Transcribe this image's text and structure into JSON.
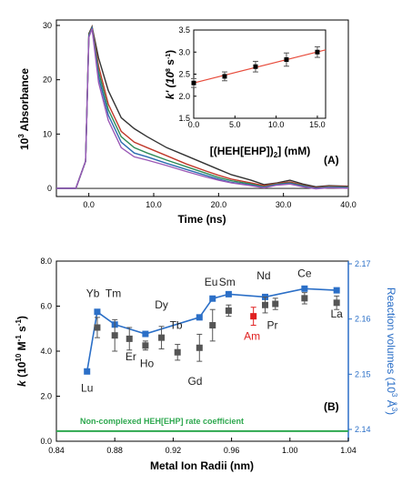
{
  "chart_data": [
    {
      "type": "line",
      "panel_label": "(A)",
      "xlabel": "Time (ns)",
      "ylabel": "10",
      "ylabel_sup": "3",
      "ylabel_rest": " Absorbance",
      "xlim": [
        -5,
        40
      ],
      "ylim": [
        -1.5,
        31
      ],
      "x_ticks": [
        0,
        10,
        20,
        30,
        40
      ],
      "x_tick_labels": [
        "0.0",
        "10.0",
        "20.0",
        "30.0",
        "40.0"
      ],
      "y_ticks": [
        0,
        10,
        20,
        30
      ],
      "y_tick_labels": [
        "0",
        "10",
        "20",
        "30"
      ],
      "series": [
        {
          "color": "#333333",
          "values_x": [
            -5,
            -2,
            -0.5,
            0,
            0.5,
            1.5,
            3,
            5,
            7,
            9,
            12,
            15,
            18,
            20,
            22,
            25,
            27,
            29,
            31,
            33,
            35,
            37,
            40
          ],
          "values_y": [
            0,
            0,
            5,
            28.5,
            29.8,
            24,
            18,
            13,
            11,
            9.5,
            7.5,
            6,
            4.5,
            3.5,
            2.5,
            1.5,
            0.7,
            1,
            1.5,
            0.8,
            0.3,
            0.5,
            0.4
          ]
        },
        {
          "color": "#c0392b",
          "values_x": [
            -5,
            -2,
            -0.5,
            0,
            0.5,
            1.5,
            3,
            5,
            7,
            9,
            12,
            15,
            18,
            20,
            22,
            25,
            27,
            29,
            31,
            33,
            35,
            37,
            40
          ],
          "values_y": [
            0,
            0,
            5,
            28.3,
            29.7,
            22.5,
            15.5,
            10.5,
            8.5,
            7.5,
            6,
            4.5,
            3.2,
            2.4,
            1.7,
            1,
            0.5,
            0.9,
            1.2,
            0.6,
            0.1,
            0.4,
            0.3
          ]
        },
        {
          "color": "#2e8b57",
          "values_x": [
            -5,
            -2,
            -0.5,
            0,
            0.5,
            1.5,
            3,
            5,
            7,
            9,
            12,
            15,
            18,
            20,
            22,
            25,
            27,
            29,
            31,
            33,
            35,
            37,
            40
          ],
          "values_y": [
            0,
            0,
            5,
            28.2,
            29.6,
            21.5,
            14.5,
            9.5,
            7.5,
            6.5,
            5.2,
            4,
            2.8,
            2,
            1.4,
            0.8,
            0.3,
            0.8,
            1,
            0.5,
            0,
            0.3,
            0.2
          ]
        },
        {
          "color": "#2b6cb0",
          "values_x": [
            -5,
            -2,
            -0.5,
            0,
            0.5,
            1.5,
            3,
            5,
            7,
            9,
            12,
            15,
            18,
            20,
            22,
            25,
            27,
            29,
            31,
            33,
            35,
            37,
            40
          ],
          "values_y": [
            0,
            0,
            5,
            28,
            29.5,
            20.5,
            13.5,
            8.5,
            6.5,
            5.8,
            4.6,
            3.5,
            2.4,
            1.7,
            1.1,
            0.6,
            0.2,
            0.7,
            0.9,
            0.4,
            0,
            0.2,
            0.1
          ]
        },
        {
          "color": "#9b59b6",
          "values_x": [
            -5,
            -2,
            -0.5,
            0,
            0.5,
            1.5,
            3,
            5,
            7,
            9,
            12,
            15,
            18,
            20,
            22,
            25,
            27,
            29,
            31,
            33,
            35,
            37,
            40
          ],
          "values_y": [
            0,
            0,
            5,
            27.8,
            29.4,
            19.5,
            12.5,
            7.5,
            5.8,
            5.2,
            4.2,
            3.1,
            2.1,
            1.5,
            1,
            0.5,
            0.1,
            0.6,
            0.8,
            0.3,
            -0.1,
            0.1,
            0
          ]
        }
      ]
    },
    {
      "type": "scatter",
      "xlabel": "[(HEH[EHP])",
      "xlabel_sub": "2",
      "xlabel_rest": "] (mM)",
      "ylabel": "k' (10",
      "ylabel_sup1": "8",
      "ylabel_rest": " s",
      "ylabel_sup2": "-1",
      "ylabel_end": ")",
      "xlim": [
        0,
        16
      ],
      "ylim": [
        1.5,
        3.5
      ],
      "x_ticks": [
        0,
        5,
        10,
        15
      ],
      "x_tick_labels": [
        "0.0",
        "5.0",
        "10.0",
        "15.0"
      ],
      "y_ticks": [
        1.5,
        2.0,
        2.5,
        3.0,
        3.5
      ],
      "y_tick_labels": [
        "1.5",
        "2.0",
        "2.5",
        "3.0",
        "3.5"
      ],
      "points_x": [
        0,
        3.75,
        7.5,
        11.25,
        15
      ],
      "points_y": [
        2.3,
        2.45,
        2.67,
        2.83,
        3.0
      ],
      "errors": [
        0.1,
        0.1,
        0.12,
        0.15,
        0.12
      ],
      "fit": {
        "x": [
          0,
          16
        ],
        "y": [
          2.3,
          3.05
        ],
        "color": "#e74c3c"
      }
    },
    {
      "type": "scatter",
      "panel_label": "(B)",
      "xlabel": "Metal Ion Radii (nm)",
      "ylabel_k": "k",
      "ylabel_mid": " (10",
      "ylabel_sup1": "10",
      "ylabel_mid2": " M",
      "ylabel_sup2": "-1",
      "ylabel_mid3": " s",
      "ylabel_sup3": "-1",
      "ylabel_end": ")",
      "ylabel_right": "Reaction volumes (10",
      "ylabel_right_sup": "3",
      "ylabel_right_end": " Å",
      "ylabel_right_sup2": "3",
      "ylabel_right_close": ")",
      "xlim": [
        0.84,
        1.04
      ],
      "ylim": [
        0,
        8
      ],
      "y2lim": [
        2.14,
        2.17
      ],
      "x_ticks": [
        0.84,
        0.88,
        0.92,
        0.96,
        1.0,
        1.04
      ],
      "x_tick_labels": [
        "0.84",
        "0.88",
        "0.92",
        "0.96",
        "1.00",
        "1.04"
      ],
      "y_ticks": [
        0,
        2,
        4,
        6,
        8
      ],
      "y_tick_labels": [
        "0.0",
        "2.0",
        "4.0",
        "6.0",
        "8.0"
      ],
      "y2_ticks": [
        2.14,
        2.15,
        2.16,
        2.17
      ],
      "y2_tick_labels": [
        "2.14",
        "2.15",
        "2.16",
        "2.17"
      ],
      "rate_points": [
        {
          "x": 0.868,
          "y": 5.05,
          "err": 0.45
        },
        {
          "x": 0.88,
          "y": 4.7,
          "err": 0.7
        },
        {
          "x": 0.89,
          "y": 4.55,
          "err": 0.5
        },
        {
          "x": 0.901,
          "y": 4.25,
          "err": 0.2
        },
        {
          "x": 0.912,
          "y": 4.6,
          "err": 0.5
        },
        {
          "x": 0.923,
          "y": 3.95,
          "err": 0.35
        },
        {
          "x": 0.938,
          "y": 4.15,
          "err": 0.6
        },
        {
          "x": 0.947,
          "y": 5.15,
          "err": 0.7
        },
        {
          "x": 0.958,
          "y": 5.8,
          "err": 0.25
        },
        {
          "x": 0.983,
          "y": 6.05,
          "err": 0.35
        },
        {
          "x": 0.99,
          "y": 6.1,
          "err": 0.25
        },
        {
          "x": 1.01,
          "y": 6.35,
          "err": 0.25
        },
        {
          "x": 1.032,
          "y": 6.15,
          "err": 0.3
        }
      ],
      "am_point": {
        "x": 0.975,
        "y": 5.55,
        "err": 0.4,
        "color": "#e02020"
      },
      "volume_series": {
        "color": "#2b6fc7",
        "x": [
          0.861,
          0.868,
          0.88,
          0.901,
          0.938,
          0.947,
          0.958,
          0.983,
          1.01,
          1.032
        ],
        "y": [
          2.1505,
          2.1613,
          2.159,
          2.1573,
          2.1603,
          2.1637,
          2.1645,
          2.164,
          2.1655,
          2.1652
        ]
      },
      "baseline": {
        "y": 0.45,
        "color": "#2ea84f",
        "label": "Non-complexed HEH[EHP] rate coefficient"
      },
      "ion_labels": [
        {
          "text": "Lu",
          "x": 0.861,
          "y": 2.2
        },
        {
          "text": "Yb",
          "x": 0.865,
          "y": 6.4
        },
        {
          "text": "Tm",
          "x": 0.879,
          "y": 6.4
        },
        {
          "text": "Er",
          "x": 0.891,
          "y": 3.6
        },
        {
          "text": "Ho",
          "x": 0.902,
          "y": 3.3
        },
        {
          "text": "Dy",
          "x": 0.912,
          "y": 5.9
        },
        {
          "text": "Tb",
          "x": 0.922,
          "y": 5.0
        },
        {
          "text": "Gd",
          "x": 0.935,
          "y": 2.5
        },
        {
          "text": "Eu",
          "x": 0.946,
          "y": 6.9
        },
        {
          "text": "Sm",
          "x": 0.957,
          "y": 6.9
        },
        {
          "text": "Nd",
          "x": 0.982,
          "y": 7.2
        },
        {
          "text": "Am",
          "x": 0.974,
          "y": 4.5,
          "color": "#e02020"
        },
        {
          "text": "Pr",
          "x": 0.988,
          "y": 5.0
        },
        {
          "text": "Ce",
          "x": 1.01,
          "y": 7.3
        },
        {
          "text": "La",
          "x": 1.032,
          "y": 5.5
        }
      ]
    }
  ]
}
